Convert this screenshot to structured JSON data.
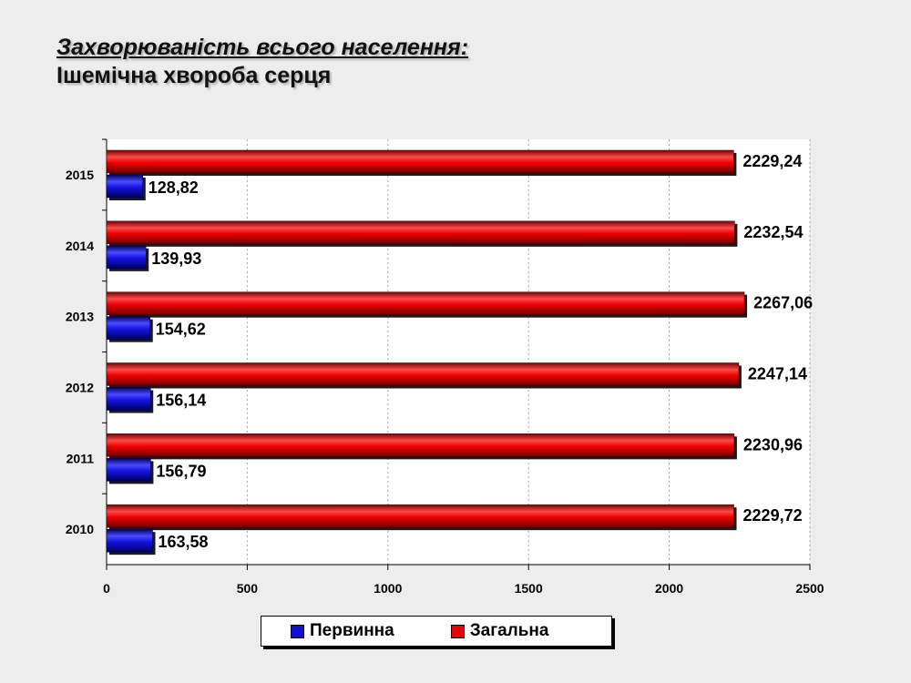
{
  "header": {
    "title": "Захворюваність всього населення:",
    "subtitle": "Ішемічна хвороба серця"
  },
  "chart_data": {
    "type": "bar",
    "orientation": "horizontal",
    "categories": [
      "2015",
      "2014",
      "2013",
      "2012",
      "2011",
      "2010"
    ],
    "series": [
      {
        "name": "Загальна",
        "color": "#e8000a",
        "values": [
          2229.24,
          2232.54,
          2267.06,
          2247.14,
          2230.96,
          2229.72
        ],
        "labels": [
          "2229,24",
          "2232,54",
          "2267,06",
          "2247,14",
          "2230,96",
          "2229,72"
        ]
      },
      {
        "name": "Первинна",
        "color": "#1010d0",
        "values": [
          128.82,
          139.93,
          154.62,
          156.14,
          156.79,
          163.58
        ],
        "labels": [
          "128,82",
          "139,93",
          "154,62",
          "156,14",
          "156,79",
          "163,58"
        ]
      }
    ],
    "xlim": [
      0,
      2500
    ],
    "xticks": [
      "0",
      "500",
      "1000",
      "1500",
      "2000",
      "2500"
    ],
    "grid": true,
    "legend_position": "bottom"
  },
  "legend": {
    "items": [
      {
        "label": "Первинна",
        "color": "#1010d0"
      },
      {
        "label": "Загальна",
        "color": "#e8000a"
      }
    ]
  }
}
